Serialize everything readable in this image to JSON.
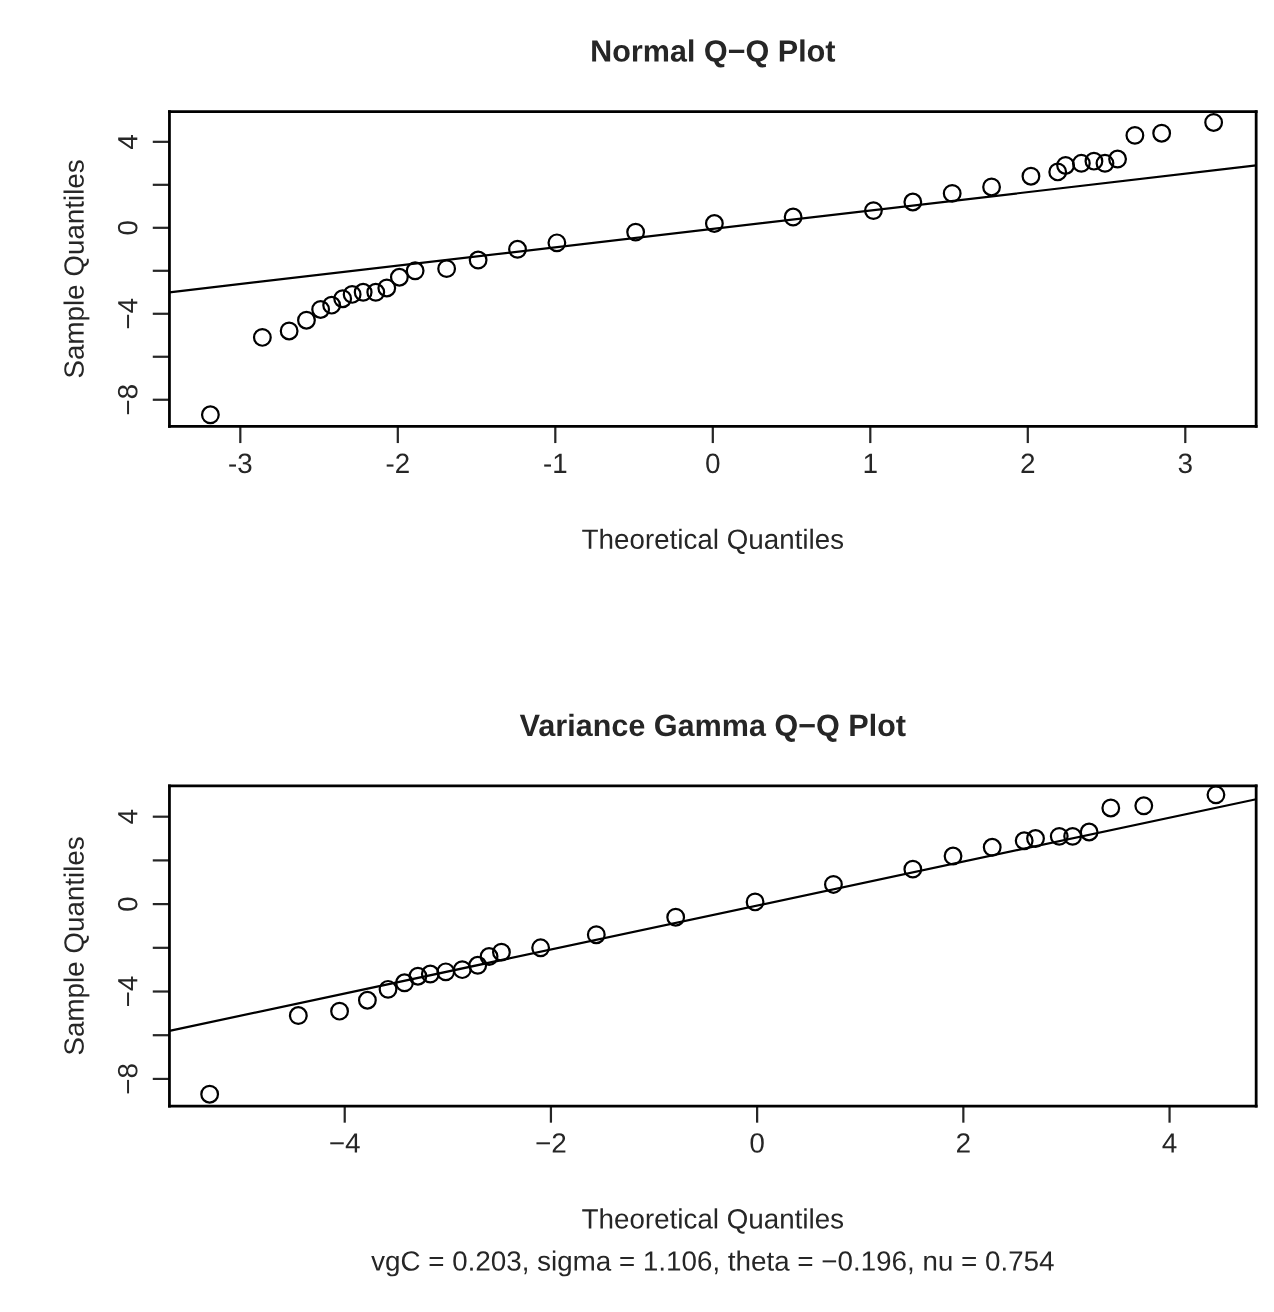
{
  "chart_data": [
    {
      "type": "scatter",
      "title": "Normal Q−Q Plot",
      "xlabel": "Theoretical Quantiles",
      "ylabel": "Sample Quantiles",
      "xlim": [
        -3.45,
        3.45
      ],
      "ylim": [
        -9.24,
        5.41
      ],
      "xticks": [
        -3,
        -2,
        -1,
        0,
        1,
        2,
        3
      ],
      "yticks": [
        {
          "value": -8,
          "label": "−8"
        },
        {
          "value": -6,
          "label": null
        },
        {
          "value": -4,
          "label": "−4"
        },
        {
          "value": -2,
          "label": null
        },
        0,
        {
          "value": 2,
          "label": null
        },
        4
      ],
      "grid": false,
      "legend": false,
      "series": [
        {
          "type": "scatter",
          "marker": "circle",
          "color": "#000000",
          "x": [
            -3.19,
            -2.86,
            -2.69,
            -2.58,
            -2.49,
            -2.42,
            -2.35,
            -2.29,
            -2.22,
            -2.14,
            -2.07,
            -1.99,
            -1.89,
            -1.69,
            -1.49,
            -1.24,
            -0.99,
            -0.49,
            0.01,
            0.51,
            1.02,
            1.27,
            1.52,
            1.77,
            2.02,
            2.19,
            2.24,
            2.34,
            2.42,
            2.49,
            2.57,
            2.68,
            2.85,
            3.18
          ],
          "values": [
            -8.7,
            -5.1,
            -4.8,
            -4.3,
            -3.8,
            -3.6,
            -3.3,
            -3.1,
            -3.0,
            -3.0,
            -2.8,
            -2.3,
            -2.0,
            -1.9,
            -1.5,
            -1.0,
            -0.7,
            -0.2,
            0.2,
            0.5,
            0.8,
            1.2,
            1.6,
            1.9,
            2.4,
            2.6,
            2.9,
            3.0,
            3.1,
            3.0,
            3.2,
            4.3,
            4.4,
            4.9
          ]
        },
        {
          "type": "line",
          "line_style": "solid",
          "color": "#000000",
          "x": [
            -3.45,
            3.45
          ],
          "values": [
            -3.0,
            2.9
          ]
        }
      ]
    },
    {
      "type": "scatter",
      "title": "Variance Gamma Q−Q Plot",
      "xlabel": "Theoretical Quantiles",
      "ylabel": "Sample Quantiles",
      "annotations": [
        "vgC = 0.203, sigma = 1.106, theta = −0.196, nu = 0.754"
      ],
      "xlim": [
        -5.7,
        4.84
      ],
      "ylim": [
        -9.24,
        5.41
      ],
      "xticks": [
        {
          "value": -4,
          "label": "−4"
        },
        {
          "value": -2,
          "label": "−2"
        },
        0,
        2,
        4
      ],
      "yticks": [
        {
          "value": -8,
          "label": "−8"
        },
        {
          "value": -6,
          "label": null
        },
        {
          "value": -4,
          "label": "−4"
        },
        {
          "value": -2,
          "label": null
        },
        0,
        {
          "value": 2,
          "label": null
        },
        4
      ],
      "grid": false,
      "legend": false,
      "series": [
        {
          "type": "scatter",
          "marker": "circle",
          "color": "#000000",
          "x": [
            -5.31,
            -4.45,
            -4.05,
            -3.78,
            -3.58,
            -3.42,
            -3.29,
            -3.17,
            -3.02,
            -2.86,
            -2.71,
            -2.6,
            -2.48,
            -2.1,
            -1.56,
            -0.79,
            -0.02,
            0.74,
            1.51,
            1.9,
            2.28,
            2.59,
            2.7,
            2.93,
            3.06,
            3.22,
            3.43,
            3.75,
            4.45
          ],
          "values": [
            -8.7,
            -5.1,
            -4.9,
            -4.4,
            -3.9,
            -3.6,
            -3.3,
            -3.2,
            -3.1,
            -3.0,
            -2.8,
            -2.4,
            -2.2,
            -2.0,
            -1.4,
            -0.6,
            0.1,
            0.9,
            1.6,
            2.2,
            2.6,
            2.9,
            3.0,
            3.1,
            3.1,
            3.3,
            4.4,
            4.5,
            5.0
          ]
        },
        {
          "type": "line",
          "line_style": "solid",
          "color": "#000000",
          "x": [
            -5.7,
            4.84
          ],
          "values": [
            -5.8,
            4.8
          ]
        }
      ]
    }
  ]
}
